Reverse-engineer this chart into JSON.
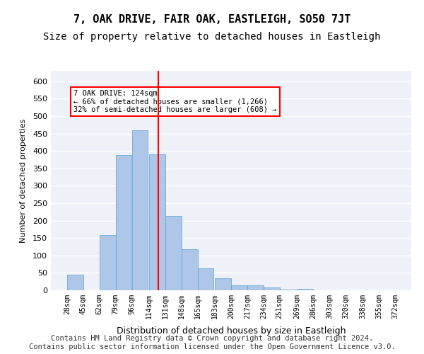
{
  "title": "7, OAK DRIVE, FAIR OAK, EASTLEIGH, SO50 7JT",
  "subtitle": "Size of property relative to detached houses in Eastleigh",
  "xlabel": "Distribution of detached houses by size in Eastleigh",
  "ylabel": "Number of detached properties",
  "bar_color": "#aec6e8",
  "bar_edge_color": "#5a9fd4",
  "background_color": "#eef2f8",
  "grid_color": "#ffffff",
  "vline_x": 124,
  "vline_color": "red",
  "annotation_text": "7 OAK DRIVE: 124sqm\n← 66% of detached houses are smaller (1,266)\n32% of semi-detached houses are larger (608) →",
  "annotation_box_color": "white",
  "annotation_box_edge": "red",
  "categories": [
    "28sqm",
    "45sqm",
    "62sqm",
    "79sqm",
    "96sqm",
    "114sqm",
    "131sqm",
    "148sqm",
    "165sqm",
    "183sqm",
    "200sqm",
    "217sqm",
    "234sqm",
    "251sqm",
    "269sqm",
    "286sqm",
    "303sqm",
    "320sqm",
    "338sqm",
    "355sqm",
    "372sqm"
  ],
  "bin_edges": [
    28,
    45,
    62,
    79,
    96,
    114,
    131,
    148,
    165,
    183,
    200,
    217,
    234,
    251,
    269,
    286,
    303,
    320,
    338,
    355,
    372
  ],
  "values": [
    44,
    0,
    158,
    388,
    460,
    390,
    213,
    118,
    63,
    35,
    15,
    15,
    8,
    3,
    5,
    1,
    0,
    0,
    0,
    0
  ],
  "bin_width": 17,
  "ylim": [
    0,
    630
  ],
  "yticks": [
    0,
    50,
    100,
    150,
    200,
    250,
    300,
    350,
    400,
    450,
    500,
    550,
    600
  ],
  "footer_text": "Contains HM Land Registry data © Crown copyright and database right 2024.\nContains public sector information licensed under the Open Government Licence v3.0.",
  "title_fontsize": 11,
  "subtitle_fontsize": 10,
  "footer_fontsize": 7.5
}
